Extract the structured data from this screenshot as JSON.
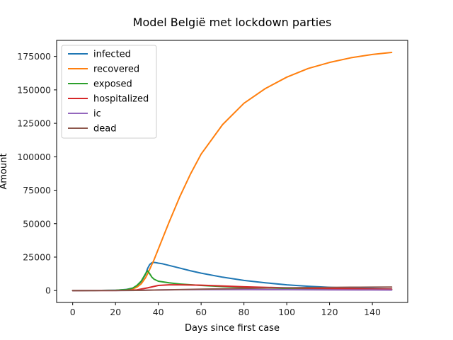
{
  "chart_data": {
    "type": "line",
    "title": "Model België met lockdown parties",
    "xlabel": "Days since first case",
    "ylabel": "Amount",
    "xlim": [
      -7.5,
      156.5
    ],
    "ylim": [
      -8900,
      187000
    ],
    "xticks": [
      0,
      20,
      40,
      60,
      80,
      100,
      120,
      140
    ],
    "yticks": [
      0,
      25000,
      50000,
      75000,
      100000,
      125000,
      150000,
      175000
    ],
    "grid": false,
    "legend": "top-left",
    "series": [
      {
        "name": "infected",
        "color": "#1f77b4",
        "x": [
          0,
          10,
          20,
          25,
          28,
          30,
          32,
          34,
          35,
          36,
          37,
          38,
          39,
          40,
          42,
          45,
          50,
          55,
          60,
          70,
          80,
          90,
          100,
          110,
          120,
          130,
          140,
          149
        ],
        "y": [
          0,
          50,
          200,
          800,
          1800,
          3500,
          6500,
          12000,
          16500,
          19500,
          20800,
          21000,
          20800,
          20500,
          20000,
          18800,
          16800,
          14800,
          13000,
          10000,
          7600,
          5800,
          4300,
          3200,
          2400,
          1800,
          1400,
          1100
        ]
      },
      {
        "name": "recovered",
        "color": "#ff7f0e",
        "x": [
          0,
          10,
          20,
          25,
          28,
          30,
          32,
          34,
          35,
          36,
          37,
          38,
          40,
          45,
          50,
          55,
          60,
          70,
          80,
          90,
          100,
          110,
          120,
          130,
          140,
          149
        ],
        "y": [
          0,
          20,
          100,
          400,
          1200,
          2500,
          5000,
          9500,
          12500,
          16000,
          19500,
          23000,
          31000,
          51000,
          70000,
          87000,
          102000,
          124000,
          140000,
          151000,
          159500,
          166000,
          170500,
          174000,
          176500,
          178000
        ]
      },
      {
        "name": "exposed",
        "color": "#2ca02c",
        "x": [
          0,
          10,
          20,
          25,
          28,
          30,
          32,
          34,
          35,
          36,
          37,
          38,
          40,
          45,
          50,
          60,
          70,
          80,
          100,
          120,
          140,
          149
        ],
        "y": [
          0,
          50,
          200,
          700,
          1800,
          3800,
          7000,
          12500,
          14800,
          12500,
          10000,
          8500,
          7000,
          5800,
          4900,
          3800,
          3000,
          2400,
          1600,
          1100,
          700,
          600
        ]
      },
      {
        "name": "hospitalized",
        "color": "#d62728",
        "x": [
          0,
          10,
          20,
          25,
          30,
          35,
          40,
          45,
          50,
          60,
          70,
          80,
          100,
          120,
          140,
          149
        ],
        "y": [
          0,
          10,
          50,
          150,
          500,
          2000,
          3800,
          4300,
          4300,
          4000,
          3400,
          2800,
          2000,
          1500,
          1100,
          1000
        ]
      },
      {
        "name": "ic",
        "color": "#9467bd",
        "x": [
          0,
          20,
          30,
          40,
          50,
          60,
          80,
          100,
          120,
          140,
          149
        ],
        "y": [
          0,
          20,
          100,
          400,
          600,
          700,
          700,
          600,
          500,
          400,
          350
        ]
      },
      {
        "name": "dead",
        "color": "#8c564b",
        "x": [
          0,
          20,
          30,
          40,
          50,
          60,
          70,
          80,
          90,
          100,
          110,
          120,
          130,
          140,
          149
        ],
        "y": [
          0,
          10,
          100,
          400,
          700,
          1000,
          1300,
          1600,
          1850,
          2050,
          2200,
          2350,
          2450,
          2550,
          2600
        ]
      }
    ]
  }
}
